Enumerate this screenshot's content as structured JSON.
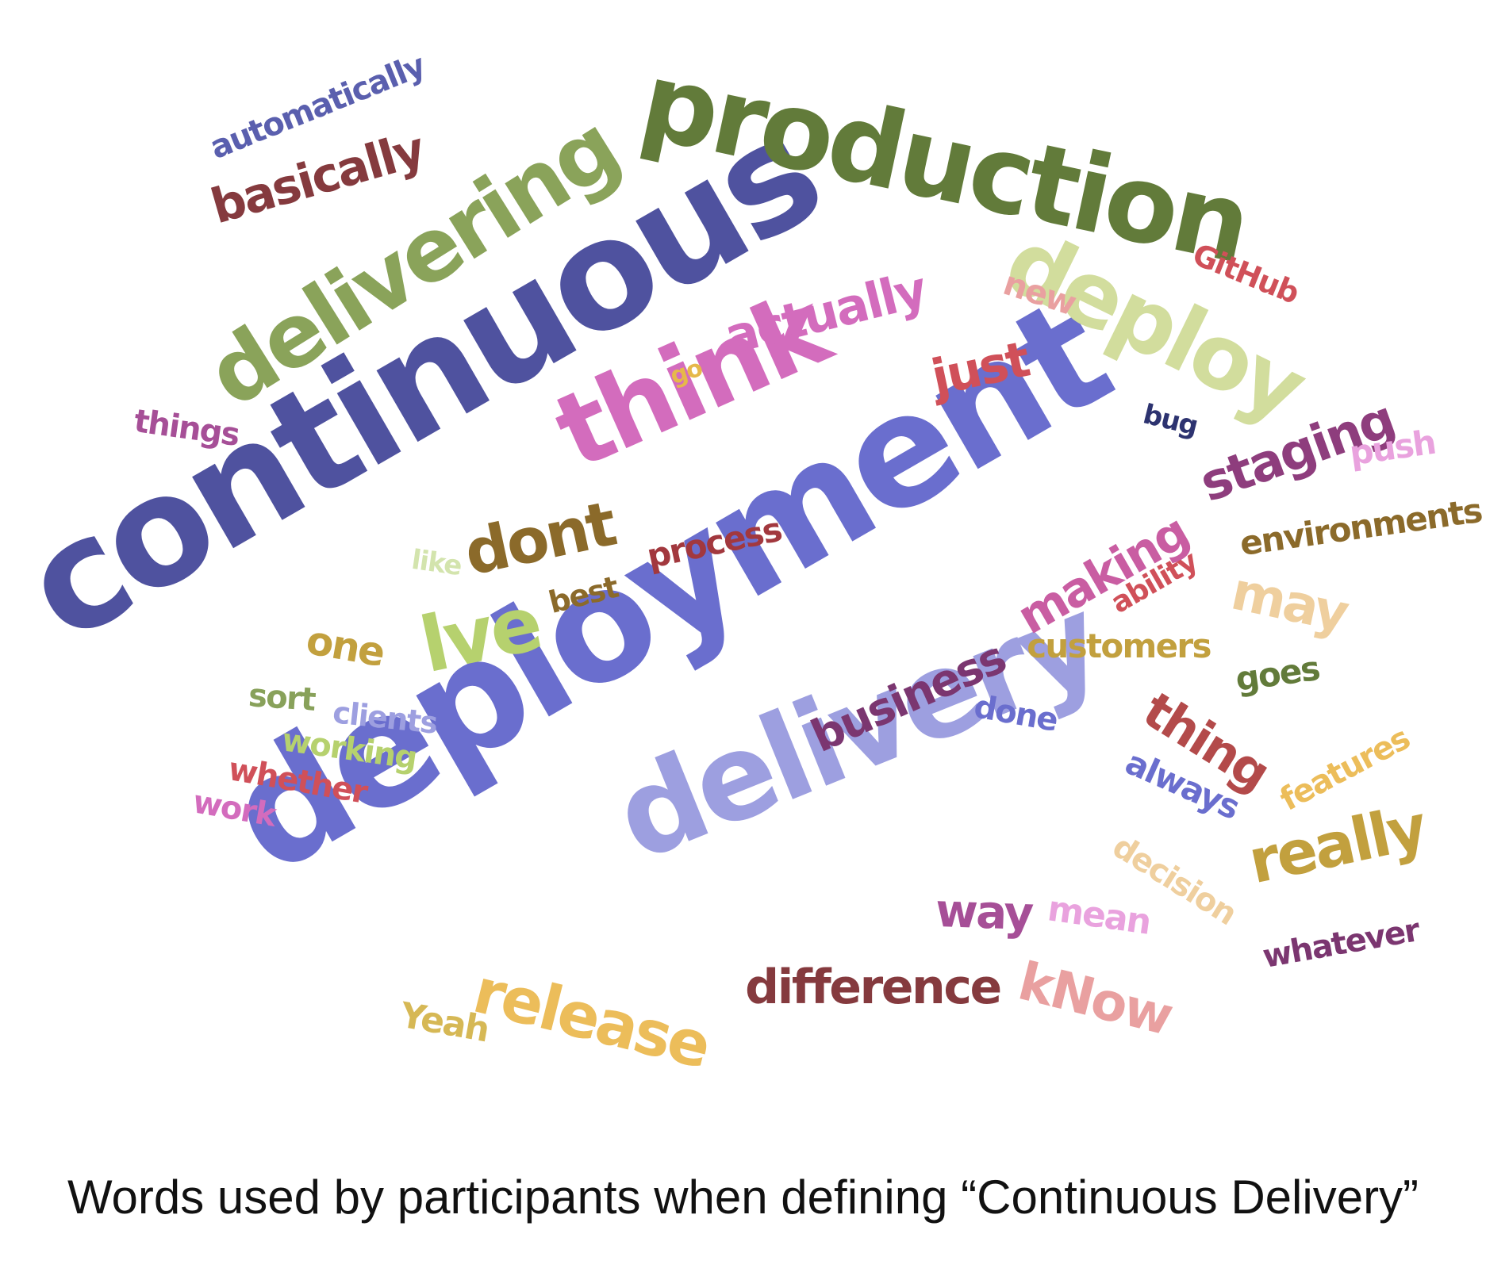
{
  "caption": "Words used by participants when defining “Continuous Delivery”",
  "colors": {
    "indigo": "#4f529f",
    "olive": "#627b3a",
    "slate_blue": "#6a6ece",
    "lavender": "#9d9fe0",
    "moss": "#8aa35a",
    "light_olive": "#d2dd9d",
    "orchid": "#d36cbd",
    "maroon": "#853a3e",
    "brown": "#8b6a2a",
    "ochre": "#c2a03e",
    "mustard": "#d6b855",
    "gold": "#ecbd5a",
    "wheat": "#efcf9e",
    "plum": "#7b3670",
    "violet": "#a64f97",
    "pink": "#e9a2de",
    "rose": "#e78c8c",
    "crimson": "#d05059",
    "navy": "#2d3370",
    "lime": "#b6d16e",
    "pale_lime": "#d3e4ad",
    "sage": "#88a15a",
    "magenta": "#c95da2"
  },
  "words": [
    {
      "text": "continuous",
      "color": "#4f529f"
    },
    {
      "text": "deployment",
      "color": "#6a6ece"
    },
    {
      "text": "production",
      "color": "#627b3a"
    },
    {
      "text": "delivery",
      "color": "#9d9fe0"
    },
    {
      "text": "delivering",
      "color": "#8aa35a"
    },
    {
      "text": "deploy",
      "color": "#d2dd9d"
    },
    {
      "text": "think",
      "color": "#d36cbd"
    },
    {
      "text": "basically",
      "color": "#853a3e"
    },
    {
      "text": "automatically",
      "color": "#5a5fae"
    },
    {
      "text": "actually",
      "color": "#d36cbd"
    },
    {
      "text": "just",
      "color": "#d05059"
    },
    {
      "text": "new",
      "color": "#e9a0a0"
    },
    {
      "text": "GitHub",
      "color": "#d05059"
    },
    {
      "text": "bug",
      "color": "#2d3370"
    },
    {
      "text": "go",
      "color": "#e6b84a"
    },
    {
      "text": "things",
      "color": "#a64f97"
    },
    {
      "text": "dont",
      "color": "#8b6a2a"
    },
    {
      "text": "process",
      "color": "#a2383e"
    },
    {
      "text": "staging",
      "color": "#8e3d7d"
    },
    {
      "text": "push",
      "color": "#e9a2de"
    },
    {
      "text": "environments",
      "color": "#8b6a2a"
    },
    {
      "text": "like",
      "color": "#d3e4ad"
    },
    {
      "text": "best",
      "color": "#8b6a2a"
    },
    {
      "text": "making",
      "color": "#c95da2"
    },
    {
      "text": "ability",
      "color": "#d05059"
    },
    {
      "text": "may",
      "color": "#efcf9e"
    },
    {
      "text": "one",
      "color": "#c2a03e"
    },
    {
      "text": "lve",
      "color": "#b6d16e"
    },
    {
      "text": "customers",
      "color": "#c2a03e"
    },
    {
      "text": "business",
      "color": "#7b3670"
    },
    {
      "text": "goes",
      "color": "#627b3a"
    },
    {
      "text": "sort",
      "color": "#88a15a"
    },
    {
      "text": "clients",
      "color": "#9d9fe0"
    },
    {
      "text": "done",
      "color": "#6a6ece"
    },
    {
      "text": "thing",
      "color": "#b34a4a"
    },
    {
      "text": "working",
      "color": "#b6d16e"
    },
    {
      "text": "always",
      "color": "#6a6ece"
    },
    {
      "text": "whether",
      "color": "#d05059"
    },
    {
      "text": "features",
      "color": "#ecbd5a"
    },
    {
      "text": "work",
      "color": "#d36cbd"
    },
    {
      "text": "really",
      "color": "#c2a03e"
    },
    {
      "text": "decision",
      "color": "#efcf9e"
    },
    {
      "text": "way",
      "color": "#a64f97"
    },
    {
      "text": "mean",
      "color": "#e9a2de"
    },
    {
      "text": "whatever",
      "color": "#7b3670"
    },
    {
      "text": "release",
      "color": "#ecbd5a"
    },
    {
      "text": "difference",
      "color": "#853a3e"
    },
    {
      "text": "kNow",
      "color": "#e9a0a0"
    },
    {
      "text": "Yeah",
      "color": "#d6b855"
    }
  ]
}
